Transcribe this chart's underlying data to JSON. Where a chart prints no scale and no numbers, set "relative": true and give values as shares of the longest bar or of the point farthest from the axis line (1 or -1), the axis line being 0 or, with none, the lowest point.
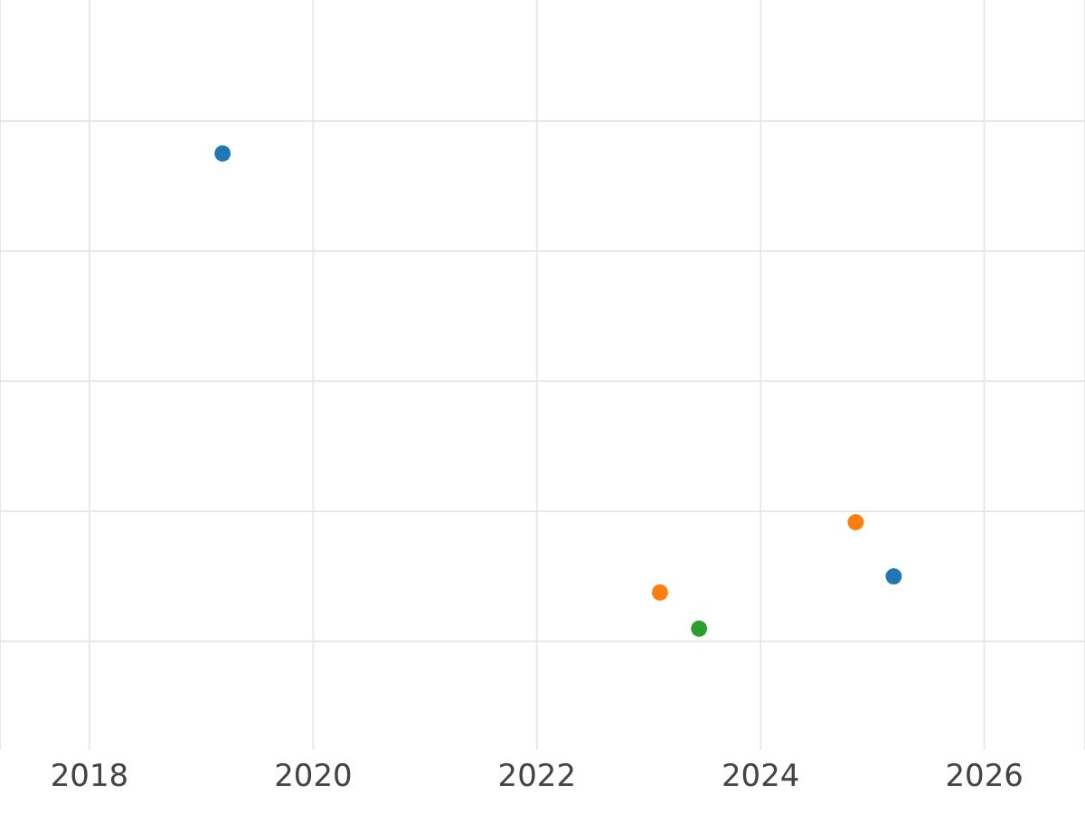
{
  "chart_data": {
    "type": "scatter",
    "relative": true,
    "xlim": [
      2017.2,
      2026.9
    ],
    "xticks": [
      2018,
      2020,
      2022,
      2024,
      2026
    ],
    "grid": true,
    "marker": "circle",
    "series": [
      {
        "color": "#1f77b4",
        "x": [
          2019.19,
          2025.19
        ],
        "values": [
          1,
          0.11
        ]
      },
      {
        "color": "#ff7f0e",
        "x": [
          2023.1,
          2024.85
        ],
        "values": [
          0.076,
          0.224
        ]
      },
      {
        "color": "#2ca02c",
        "x": [
          2023.45
        ],
        "values": [
          0
        ]
      }
    ]
  }
}
